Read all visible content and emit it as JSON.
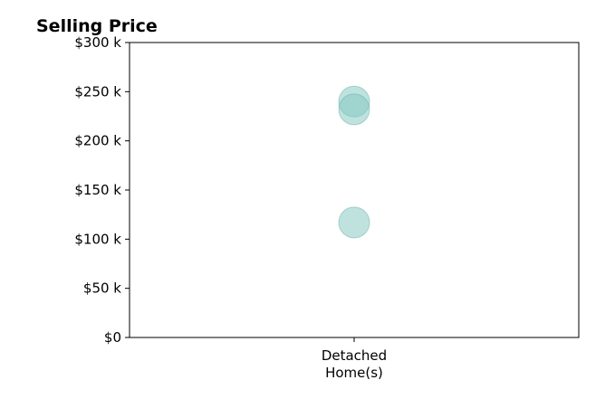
{
  "chart_data": {
    "type": "scatter",
    "title": "Selling Price",
    "xlabel": "",
    "ylabel": "",
    "categories": [
      [
        "Detached",
        "Home(s)"
      ]
    ],
    "series": [
      {
        "category_index": 0,
        "values": [
          240000,
          232000,
          117000
        ]
      }
    ],
    "ylim": [
      0,
      300000
    ],
    "yticks": [
      0,
      50000,
      100000,
      150000,
      200000,
      250000,
      300000
    ],
    "ytick_labels": [
      "$0",
      "$50 k",
      "$100 k",
      "$150 k",
      "$200 k",
      "$250 k",
      "$300 k"
    ],
    "grid": false,
    "legend": "none",
    "marker_color": "#7fc6c0",
    "marker_edge_color": "#5fb3ad"
  }
}
